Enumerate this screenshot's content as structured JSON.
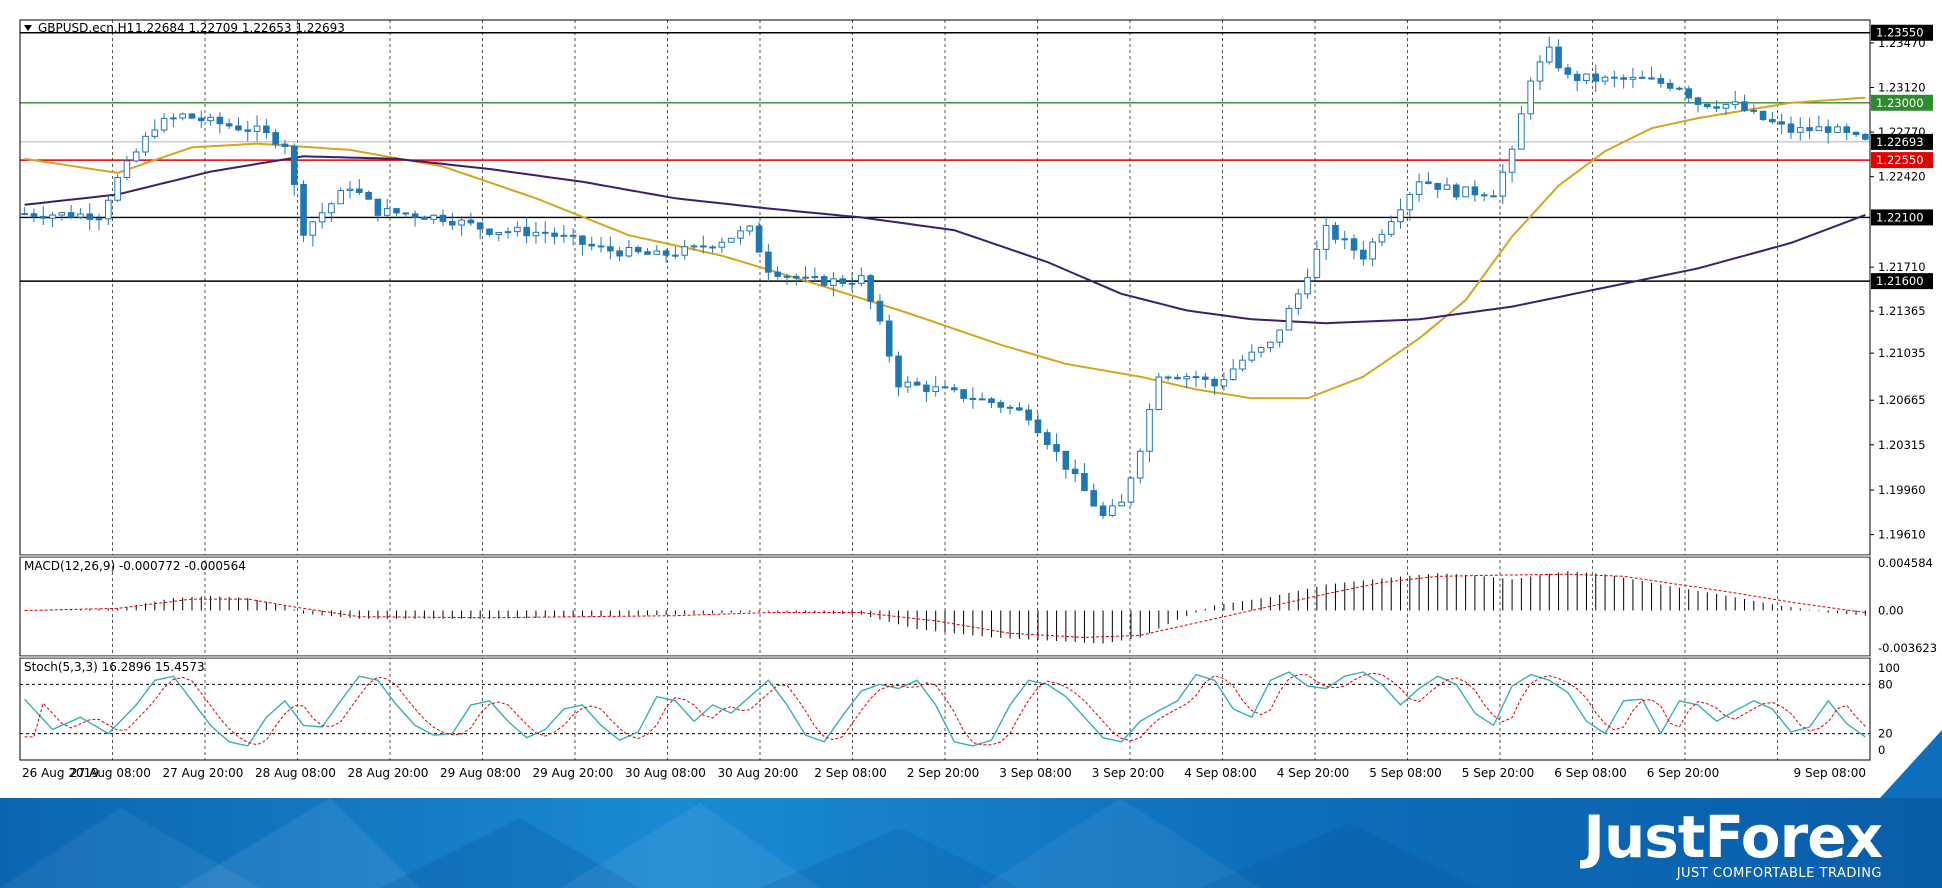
{
  "header": {
    "symbol": "GBPUSD.ecn,H1",
    "ohlc": "1.22684 1.22709 1.22653 1.22693"
  },
  "indicators": {
    "macd_label": "MACD(12,26,9) -0.000772 -0.000564",
    "stoch_label": "Stoch(5,3,3) 16.2896 15.4573"
  },
  "price_axis_labels": [
    "1.23470",
    "1.23120",
    "1.22770",
    "1.22420",
    "1.21710",
    "1.21365",
    "1.21035",
    "1.20665",
    "1.20315",
    "1.19960",
    "1.19610"
  ],
  "macd_axis_labels": [
    "0.004584",
    "0.00",
    "-0.003623"
  ],
  "stoch_axis_labels": [
    "100",
    "80",
    "20",
    "0"
  ],
  "levels": [
    {
      "value": 1.2355,
      "label": "1.23550",
      "color": "#000000"
    },
    {
      "value": 1.23,
      "label": "1.23000",
      "color": "#2e8b2e"
    },
    {
      "value": 1.2255,
      "label": "1.22550",
      "color": "#e00000"
    },
    {
      "value": 1.221,
      "label": "1.22100",
      "color": "#000000"
    },
    {
      "value": 1.216,
      "label": "1.21600",
      "color": "#000000"
    }
  ],
  "current_price": {
    "value": 1.22693,
    "label": "1.22693"
  },
  "colors": {
    "candle": "#1f77b4",
    "ma_fast": "#d4a520",
    "ma_slow": "#3b1f6e",
    "macd_signal": "#e00000",
    "stoch_main": "#3bb0b0",
    "stoch_signal": "#e00000"
  },
  "chart_data": {
    "type": "candlestick",
    "timeframe": "H1",
    "ylim": [
      1.1945,
      1.2365
    ],
    "x_labels": [
      "26 Aug 2019",
      "27 Aug 08:00",
      "27 Aug 20:00",
      "28 Aug 08:00",
      "28 Aug 20:00",
      "29 Aug 08:00",
      "29 Aug 20:00",
      "30 Aug 08:00",
      "30 Aug 20:00",
      "2 Sep 08:00",
      "2 Sep 20:00",
      "3 Sep 08:00",
      "3 Sep 20:00",
      "4 Sep 08:00",
      "4 Sep 20:00",
      "5 Sep 08:00",
      "5 Sep 20:00",
      "6 Sep 08:00",
      "6 Sep 20:00",
      "9 Sep 08:00"
    ],
    "close_path": [
      [
        0,
        1.2213
      ],
      [
        8,
        1.2212
      ],
      [
        10,
        1.224
      ],
      [
        14,
        1.2282
      ],
      [
        17,
        1.229
      ],
      [
        20,
        1.2285
      ],
      [
        25,
        1.2278
      ],
      [
        28,
        1.2268
      ],
      [
        30,
        1.22
      ],
      [
        35,
        1.2235
      ],
      [
        38,
        1.2215
      ],
      [
        45,
        1.221
      ],
      [
        50,
        1.22
      ],
      [
        56,
        1.2198
      ],
      [
        62,
        1.2185
      ],
      [
        68,
        1.218
      ],
      [
        72,
        1.2185
      ],
      [
        76,
        1.2195
      ],
      [
        78,
        1.22
      ],
      [
        80,
        1.217
      ],
      [
        84,
        1.216
      ],
      [
        88,
        1.216
      ],
      [
        90,
        1.2162
      ],
      [
        92,
        1.2125
      ],
      [
        94,
        1.208
      ],
      [
        98,
        1.2075
      ],
      [
        104,
        1.2065
      ],
      [
        108,
        1.2055
      ],
      [
        112,
        1.2015
      ],
      [
        116,
        1.1975
      ],
      [
        118,
        1.1985
      ],
      [
        120,
        1.203
      ],
      [
        122,
        1.2088
      ],
      [
        126,
        1.2085
      ],
      [
        128,
        1.2078
      ],
      [
        131,
        1.2098
      ],
      [
        134,
        1.211
      ],
      [
        137,
        1.215
      ],
      [
        140,
        1.22
      ],
      [
        144,
        1.218
      ],
      [
        148,
        1.222
      ],
      [
        150,
        1.224
      ],
      [
        154,
        1.223
      ],
      [
        158,
        1.223
      ],
      [
        160,
        1.226
      ],
      [
        162,
        1.232
      ],
      [
        164,
        1.234
      ],
      [
        166,
        1.232
      ],
      [
        170,
        1.2318
      ],
      [
        174,
        1.2318
      ],
      [
        178,
        1.2313
      ],
      [
        180,
        1.23
      ],
      [
        184,
        1.2298
      ],
      [
        186,
        1.229
      ],
      [
        190,
        1.2278
      ],
      [
        194,
        1.228
      ],
      [
        198,
        1.2269
      ]
    ],
    "ma_fast_path": [
      [
        0,
        1.2256
      ],
      [
        10,
        1.2245
      ],
      [
        18,
        1.2265
      ],
      [
        25,
        1.2268
      ],
      [
        35,
        1.2263
      ],
      [
        45,
        1.225
      ],
      [
        55,
        1.2225
      ],
      [
        65,
        1.2196
      ],
      [
        75,
        1.218
      ],
      [
        85,
        1.2158
      ],
      [
        95,
        1.2135
      ],
      [
        105,
        1.211
      ],
      [
        112,
        1.2095
      ],
      [
        120,
        1.2085
      ],
      [
        126,
        1.2075
      ],
      [
        132,
        1.2068
      ],
      [
        138,
        1.2068
      ],
      [
        144,
        1.2085
      ],
      [
        150,
        1.2115
      ],
      [
        155,
        1.2145
      ],
      [
        160,
        1.2195
      ],
      [
        165,
        1.2235
      ],
      [
        170,
        1.2262
      ],
      [
        175,
        1.228
      ],
      [
        180,
        1.2288
      ],
      [
        190,
        1.23
      ],
      [
        198,
        1.2304
      ]
    ],
    "ma_slow_path": [
      [
        0,
        1.222
      ],
      [
        10,
        1.2228
      ],
      [
        20,
        1.2246
      ],
      [
        30,
        1.2258
      ],
      [
        40,
        1.2256
      ],
      [
        50,
        1.2248
      ],
      [
        60,
        1.2238
      ],
      [
        70,
        1.2225
      ],
      [
        80,
        1.2217
      ],
      [
        90,
        1.221
      ],
      [
        100,
        1.22
      ],
      [
        110,
        1.2175
      ],
      [
        118,
        1.215
      ],
      [
        125,
        1.2137
      ],
      [
        132,
        1.213
      ],
      [
        140,
        1.2127
      ],
      [
        150,
        1.213
      ],
      [
        155,
        1.2135
      ],
      [
        160,
        1.214
      ],
      [
        170,
        1.2155
      ],
      [
        180,
        1.217
      ],
      [
        190,
        1.219
      ],
      [
        198,
        1.2212
      ]
    ],
    "macd_hist_path": [
      [
        0,
        0.0
      ],
      [
        10,
        0.0002
      ],
      [
        16,
        0.0012
      ],
      [
        20,
        0.0014
      ],
      [
        24,
        0.0012
      ],
      [
        28,
        0.0005
      ],
      [
        30,
        -0.0003
      ],
      [
        36,
        -0.0008
      ],
      [
        50,
        -0.0008
      ],
      [
        70,
        -0.0004
      ],
      [
        80,
        -0.0001
      ],
      [
        90,
        -0.0004
      ],
      [
        96,
        -0.0018
      ],
      [
        104,
        -0.0026
      ],
      [
        112,
        -0.003
      ],
      [
        116,
        -0.0032
      ],
      [
        120,
        -0.0026
      ],
      [
        124,
        -0.0009
      ],
      [
        128,
        0.0005
      ],
      [
        134,
        0.0013
      ],
      [
        140,
        0.0025
      ],
      [
        146,
        0.0031
      ],
      [
        152,
        0.0036
      ],
      [
        156,
        0.0034
      ],
      [
        160,
        0.003
      ],
      [
        166,
        0.0038
      ],
      [
        170,
        0.0035
      ],
      [
        176,
        0.0025
      ],
      [
        182,
        0.0016
      ],
      [
        188,
        0.0006
      ],
      [
        194,
        -0.0002
      ],
      [
        198,
        -0.0005
      ]
    ],
    "macd_signal_path": [
      [
        0,
        0.0
      ],
      [
        10,
        0.0002
      ],
      [
        18,
        0.0011
      ],
      [
        24,
        0.0011
      ],
      [
        30,
        0.0002
      ],
      [
        36,
        -0.0006
      ],
      [
        50,
        -0.0007
      ],
      [
        70,
        -0.0005
      ],
      [
        80,
        -0.0002
      ],
      [
        90,
        -0.0002
      ],
      [
        98,
        -0.001
      ],
      [
        106,
        -0.0022
      ],
      [
        114,
        -0.0026
      ],
      [
        120,
        -0.0024
      ],
      [
        126,
        -0.0012
      ],
      [
        132,
        0.0
      ],
      [
        140,
        0.0016
      ],
      [
        146,
        0.0027
      ],
      [
        152,
        0.0033
      ],
      [
        158,
        0.0034
      ],
      [
        166,
        0.0035
      ],
      [
        172,
        0.0033
      ],
      [
        178,
        0.0025
      ],
      [
        184,
        0.0017
      ],
      [
        190,
        0.0008
      ],
      [
        198,
        -0.0002
      ]
    ],
    "stoch_path": [
      [
        0,
        62
      ],
      [
        3,
        25
      ],
      [
        6,
        40
      ],
      [
        9,
        20
      ],
      [
        12,
        55
      ],
      [
        14,
        85
      ],
      [
        16,
        90
      ],
      [
        18,
        60
      ],
      [
        20,
        30
      ],
      [
        22,
        10
      ],
      [
        24,
        5
      ],
      [
        26,
        40
      ],
      [
        28,
        60
      ],
      [
        30,
        30
      ],
      [
        32,
        28
      ],
      [
        34,
        60
      ],
      [
        36,
        90
      ],
      [
        38,
        85
      ],
      [
        40,
        55
      ],
      [
        42,
        30
      ],
      [
        44,
        18
      ],
      [
        46,
        20
      ],
      [
        48,
        55
      ],
      [
        50,
        60
      ],
      [
        52,
        35
      ],
      [
        54,
        15
      ],
      [
        56,
        25
      ],
      [
        58,
        50
      ],
      [
        60,
        55
      ],
      [
        62,
        30
      ],
      [
        64,
        12
      ],
      [
        66,
        22
      ],
      [
        68,
        65
      ],
      [
        70,
        60
      ],
      [
        72,
        35
      ],
      [
        74,
        55
      ],
      [
        76,
        45
      ],
      [
        78,
        65
      ],
      [
        80,
        85
      ],
      [
        82,
        55
      ],
      [
        84,
        18
      ],
      [
        86,
        10
      ],
      [
        88,
        42
      ],
      [
        90,
        72
      ],
      [
        92,
        80
      ],
      [
        94,
        75
      ],
      [
        96,
        85
      ],
      [
        98,
        55
      ],
      [
        100,
        10
      ],
      [
        102,
        5
      ],
      [
        104,
        12
      ],
      [
        106,
        55
      ],
      [
        108,
        85
      ],
      [
        110,
        80
      ],
      [
        112,
        65
      ],
      [
        114,
        40
      ],
      [
        116,
        15
      ],
      [
        118,
        10
      ],
      [
        120,
        35
      ],
      [
        122,
        48
      ],
      [
        124,
        60
      ],
      [
        126,
        92
      ],
      [
        128,
        85
      ],
      [
        130,
        50
      ],
      [
        132,
        40
      ],
      [
        134,
        85
      ],
      [
        136,
        95
      ],
      [
        138,
        78
      ],
      [
        140,
        75
      ],
      [
        142,
        90
      ],
      [
        144,
        95
      ],
      [
        146,
        80
      ],
      [
        148,
        55
      ],
      [
        150,
        75
      ],
      [
        152,
        90
      ],
      [
        154,
        80
      ],
      [
        156,
        45
      ],
      [
        158,
        30
      ],
      [
        160,
        78
      ],
      [
        162,
        92
      ],
      [
        164,
        85
      ],
      [
        166,
        70
      ],
      [
        168,
        35
      ],
      [
        170,
        20
      ],
      [
        172,
        60
      ],
      [
        174,
        62
      ],
      [
        176,
        20
      ],
      [
        178,
        60
      ],
      [
        180,
        55
      ],
      [
        182,
        35
      ],
      [
        184,
        48
      ],
      [
        186,
        60
      ],
      [
        188,
        50
      ],
      [
        190,
        22
      ],
      [
        192,
        28
      ],
      [
        194,
        60
      ],
      [
        196,
        32
      ],
      [
        198,
        16
      ]
    ]
  }
}
